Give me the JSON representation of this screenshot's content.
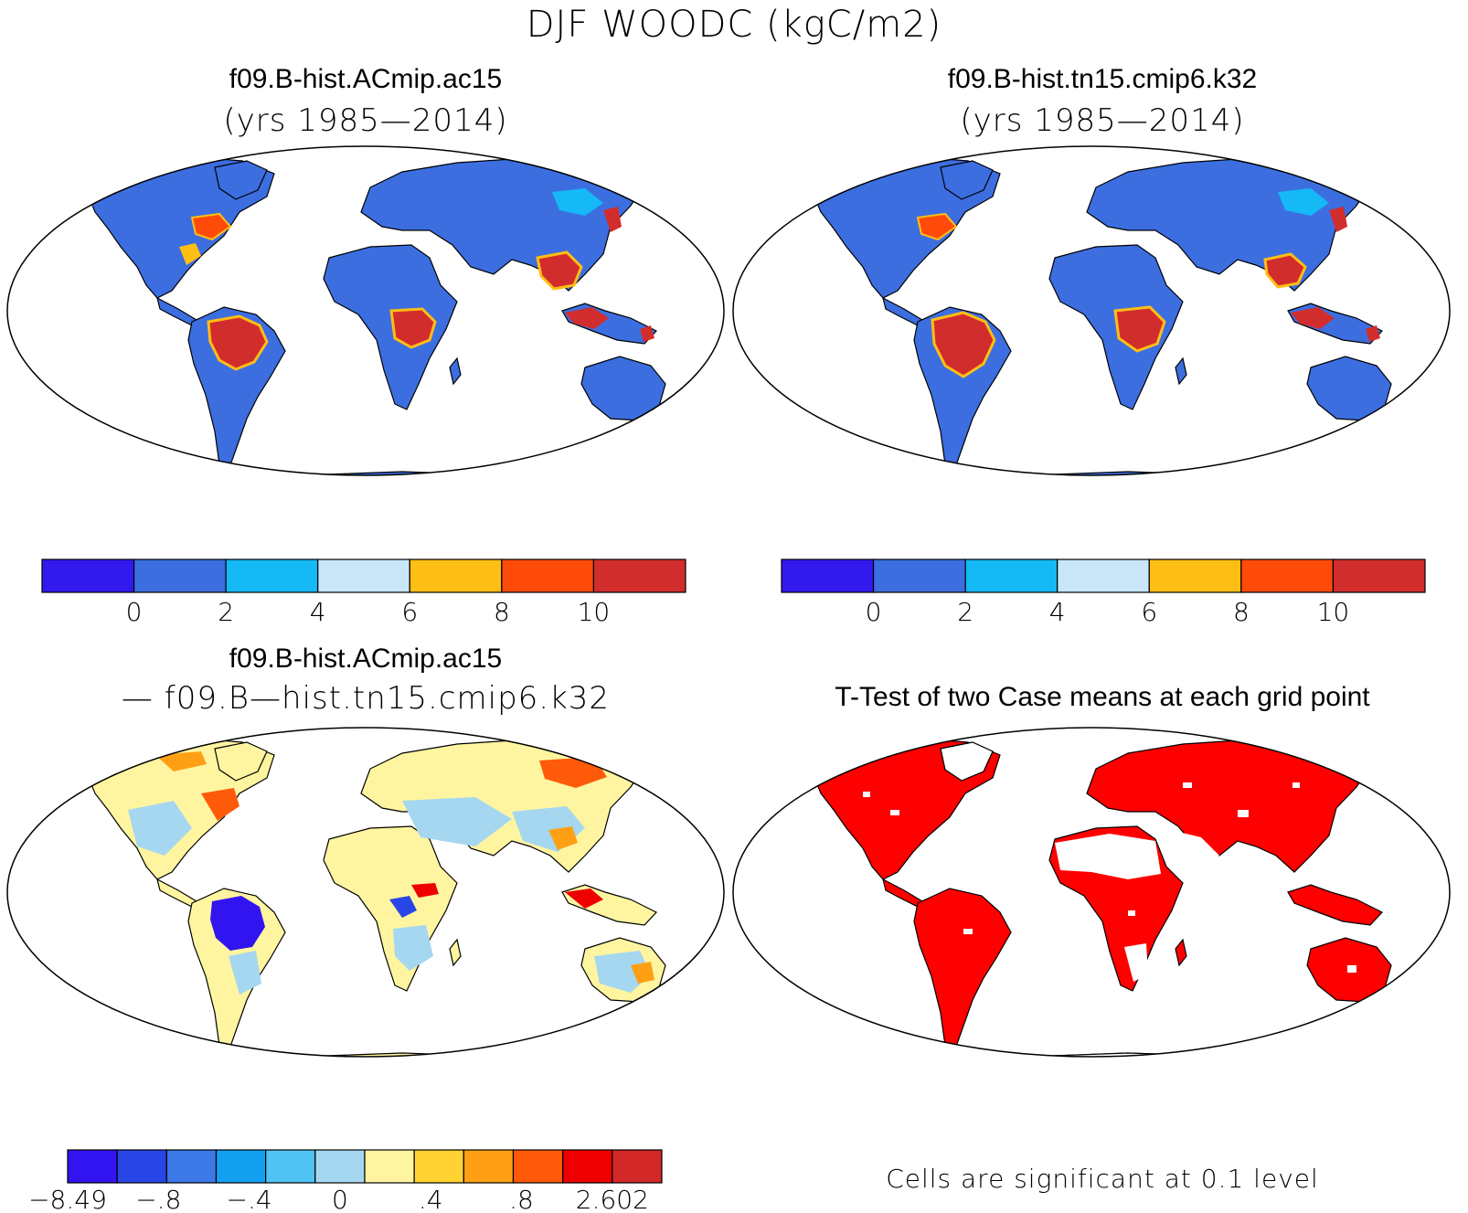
{
  "figure": {
    "title": "DJF WOODC (kgC/m2)"
  },
  "panels": [
    {
      "name": "f09.B-hist.ACmip.ac15",
      "subtitle": "(yrs 1985—2014)",
      "colorbar": {
        "colors": [
          "#3219ee",
          "#3c6ee0",
          "#14b9f5",
          "#c8e6f8",
          "#ffbe14",
          "#ff4b0a",
          "#d22d2d"
        ],
        "ticks": [
          "0",
          "2",
          "4",
          "6",
          "8",
          "10"
        ]
      }
    },
    {
      "name": "f09.B-hist.tn15.cmip6.k32",
      "subtitle": "(yrs 1985—2014)",
      "colorbar": {
        "colors": [
          "#3219ee",
          "#3c6ee0",
          "#14b9f5",
          "#c8e6f8",
          "#ffbe14",
          "#ff4b0a",
          "#d22d2d"
        ],
        "ticks": [
          "0",
          "2",
          "4",
          "6",
          "8",
          "10"
        ]
      }
    },
    {
      "name": "f09.B-hist.ACmip.ac15",
      "subtitle": "— f09.B—hist.tn15.cmip6.k32",
      "colorbar": {
        "colors": [
          "#3214f0",
          "#2846e6",
          "#3c78e6",
          "#14a0f0",
          "#50c3f5",
          "#a5d7f0",
          "#fff5a0",
          "#ffd232",
          "#ffa014",
          "#ff5a0a",
          "#ee0000",
          "#d22828"
        ],
        "ticks": [
          "−8.49",
          "−.8",
          "−.4",
          "0",
          ".4",
          ".8",
          "2.602"
        ]
      }
    },
    {
      "name": "T-Test of two Case means at each grid point",
      "note": "Cells are significant at 0.1 level",
      "significant_color": "#ff0000"
    }
  ]
}
